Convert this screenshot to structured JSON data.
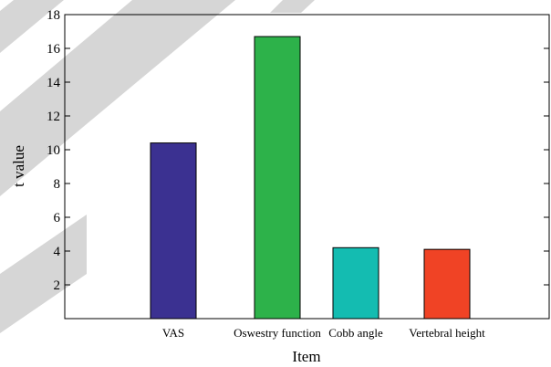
{
  "chart_data": {
    "type": "bar",
    "xlabel": "Item",
    "ylabel": "t value",
    "ylim": [
      0,
      18
    ],
    "yticks": [
      2,
      4,
      6,
      8,
      10,
      12,
      14,
      16,
      18
    ],
    "categories": [
      "VAS",
      "Oswestry function",
      "Cobb angle",
      "Vertebral height"
    ],
    "values": [
      10.4,
      16.7,
      4.2,
      4.1
    ],
    "colors": [
      "#3b3191",
      "#2db24a",
      "#14bcb1",
      "#f04325"
    ],
    "grid": false,
    "legend": "none"
  }
}
